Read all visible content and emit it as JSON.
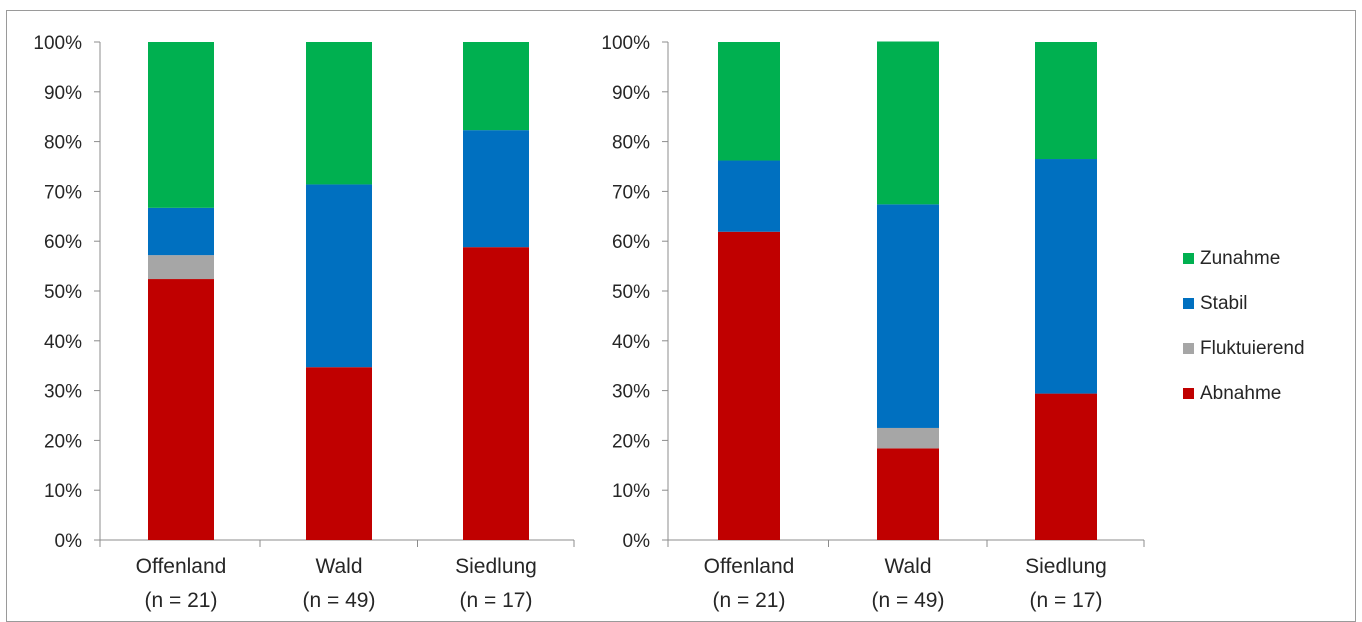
{
  "chart_data": [
    {
      "type": "bar",
      "stacked": true,
      "categories": [
        "Offenland\n(n = 21)",
        "Wald\n(n = 49)",
        "Siedlung\n(n = 17)"
      ],
      "yticks": [
        "0%",
        "10%",
        "20%",
        "30%",
        "40%",
        "50%",
        "60%",
        "70%",
        "80%",
        "90%",
        "100%"
      ],
      "ylim": [
        0,
        100
      ],
      "series": [
        {
          "name": "Abnahme",
          "values": [
            52.4,
            34.7,
            58.8
          ]
        },
        {
          "name": "Fluktuierend",
          "values": [
            4.8,
            0,
            0
          ]
        },
        {
          "name": "Stabil",
          "values": [
            9.5,
            36.7,
            23.5
          ]
        },
        {
          "name": "Zunahme",
          "values": [
            33.3,
            28.6,
            17.7
          ]
        }
      ]
    },
    {
      "type": "bar",
      "stacked": true,
      "categories": [
        "Offenland\n(n = 21)",
        "Wald\n(n = 49)",
        "Siedlung\n(n = 17)"
      ],
      "yticks": [
        "0%",
        "10%",
        "20%",
        "30%",
        "40%",
        "50%",
        "60%",
        "70%",
        "80%",
        "90%",
        "100%"
      ],
      "ylim": [
        0,
        100
      ],
      "series": [
        {
          "name": "Abnahme",
          "values": [
            61.9,
            18.4,
            29.4
          ]
        },
        {
          "name": "Fluktuierend",
          "values": [
            0,
            4.1,
            0
          ]
        },
        {
          "name": "Stabil",
          "values": [
            14.3,
            44.9,
            47.1
          ]
        },
        {
          "name": "Zunahme",
          "values": [
            23.8,
            32.7,
            23.5
          ]
        }
      ]
    }
  ],
  "legend": {
    "placement": "right",
    "items": [
      {
        "label": "Zunahme",
        "color": "#00b050"
      },
      {
        "label": "Stabil",
        "color": "#0070c0"
      },
      {
        "label": "Fluktuierend",
        "color": "#a6a6a6"
      },
      {
        "label": "Abnahme",
        "color": "#c00000"
      }
    ]
  },
  "colors": {
    "Abnahme": "#c00000",
    "Fluktuierend": "#a6a6a6",
    "Stabil": "#0070c0",
    "Zunahme": "#00b050"
  }
}
